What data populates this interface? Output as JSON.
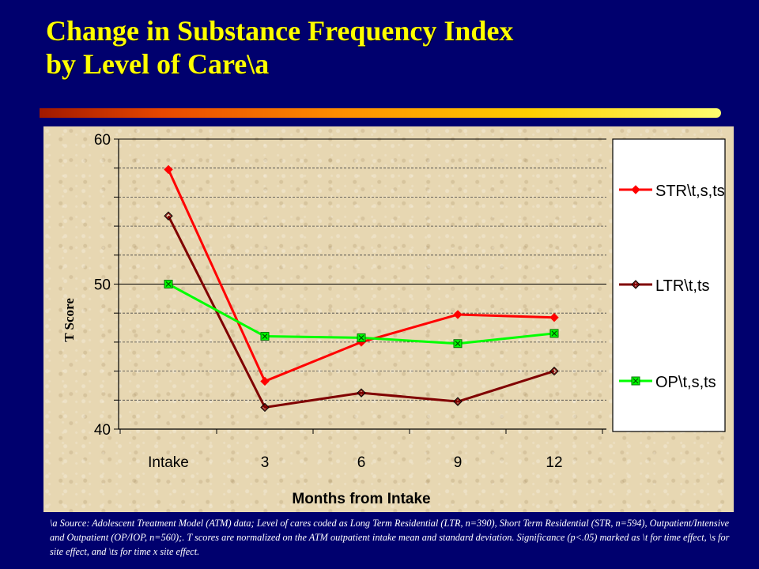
{
  "slide": {
    "title_line1": "Change in Substance Frequency Index",
    "title_line2": "by Level of Care\\a",
    "footnote": "\\a Source:  Adolescent Treatment Model (ATM) data; Level of cares coded as Long Term Residential (LTR, n=390), Short Term Residential (STR, n=594), Outpatient/Intensive  and Outpatient (OP/IOP, n=560);.  T scores are normalized on the ATM outpatient intake mean and standard deviation.  Significance  (p<.05) marked as  \\t for time effect, \\s for site effect, and \\ts for time x site effect."
  },
  "colors": {
    "background": "#00006e",
    "title": "#ffff00",
    "panel": "#e7d7b2",
    "str": "#ff0000",
    "ltr": "#800000",
    "op": "#00ff00"
  },
  "chart_data": {
    "type": "line",
    "title": "",
    "xlabel": "Months from Intake",
    "ylabel": "T Score",
    "categories": [
      "Intake",
      "3",
      "6",
      "9",
      "12"
    ],
    "ylim": [
      40,
      60
    ],
    "yticks": [
      40,
      50,
      60
    ],
    "minor_grid_step": 2,
    "grid": true,
    "legend_position": "right",
    "series": [
      {
        "name": "STR\\t,s,ts",
        "color": "#ff0000",
        "marker": "diamond-filled",
        "values": [
          57.9,
          43.3,
          46.0,
          47.9,
          47.7
        ]
      },
      {
        "name": "LTR\\t,ts",
        "color": "#800000",
        "marker": "diamond-open",
        "values": [
          54.7,
          41.5,
          42.5,
          41.9,
          44.0
        ]
      },
      {
        "name": "OP\\t,s,ts",
        "color": "#00ff00",
        "marker": "square-x",
        "values": [
          50.0,
          46.4,
          46.3,
          45.9,
          46.6
        ]
      }
    ]
  }
}
